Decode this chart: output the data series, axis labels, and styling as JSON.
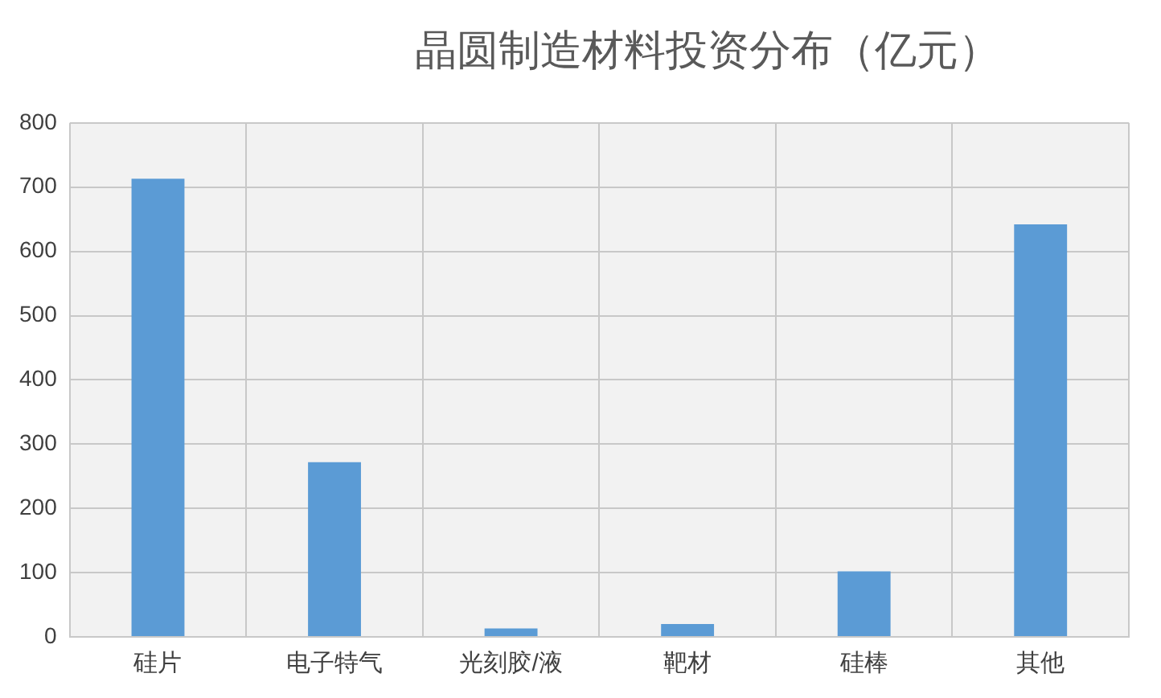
{
  "chart_data": {
    "type": "bar",
    "title": "晶圆制造材料投资分布（亿元）",
    "categories": [
      "硅片",
      "电子特气",
      "光刻胶/液",
      "靶材",
      "硅棒",
      "其他"
    ],
    "values": [
      713,
      272,
      13,
      20,
      102,
      642
    ],
    "color": "#5b9bd5",
    "ylim": [
      0,
      800
    ],
    "yticks": [
      0,
      100,
      200,
      300,
      400,
      500,
      600,
      700,
      800
    ],
    "grid": true
  }
}
